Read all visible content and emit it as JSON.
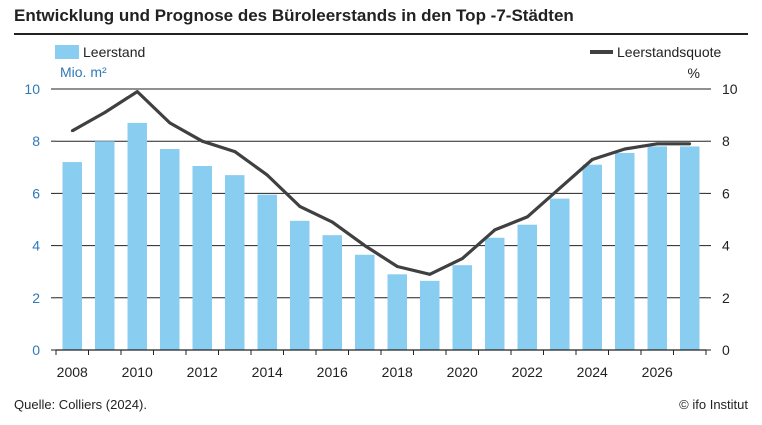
{
  "title": "Entwicklung und Prognose des Büroleerstands in den Top -7-Städten",
  "source": "Quelle: Colliers (2024).",
  "credit": "© ifo Institut",
  "colors": {
    "bar": "#89cdf1",
    "line": "#404040",
    "left_axis": "#2f79b8",
    "grid": "#222222"
  },
  "chart_data": {
    "type": "bar",
    "title": "Entwicklung und Prognose des Büroleerstands in den Top -7-Städten",
    "categories": [
      2008,
      2009,
      2010,
      2011,
      2012,
      2013,
      2014,
      2015,
      2016,
      2017,
      2018,
      2019,
      2020,
      2021,
      2022,
      2023,
      2024,
      2025,
      2026,
      2027
    ],
    "series": [
      {
        "name": "Leerstand",
        "type": "bar",
        "axis": "left",
        "values": [
          7.2,
          8.0,
          8.7,
          7.7,
          7.05,
          6.7,
          5.95,
          4.95,
          4.4,
          3.65,
          2.9,
          2.65,
          3.25,
          4.3,
          4.8,
          5.8,
          7.1,
          7.55,
          7.8,
          7.8
        ]
      },
      {
        "name": "Leerstandsquote",
        "type": "line",
        "axis": "right",
        "values": [
          8.4,
          9.1,
          9.9,
          8.7,
          8.0,
          7.6,
          6.7,
          5.5,
          4.9,
          4.0,
          3.2,
          2.9,
          3.5,
          4.6,
          5.1,
          6.2,
          7.3,
          7.7,
          7.9,
          7.9
        ]
      }
    ],
    "y_left": {
      "unit": "Mio. m²",
      "range": [
        0,
        10
      ],
      "ticks": [
        0,
        2,
        4,
        6,
        8,
        10
      ]
    },
    "y_right": {
      "unit": "%",
      "range": [
        0,
        10
      ],
      "ticks": [
        0,
        2,
        4,
        6,
        8,
        10
      ]
    },
    "x_ticks": [
      2008,
      2010,
      2012,
      2014,
      2016,
      2018,
      2020,
      2022,
      2024,
      2026
    ],
    "grid": "horizontal",
    "legend": {
      "left": "Leerstand",
      "right": "Leerstandsquote"
    }
  }
}
